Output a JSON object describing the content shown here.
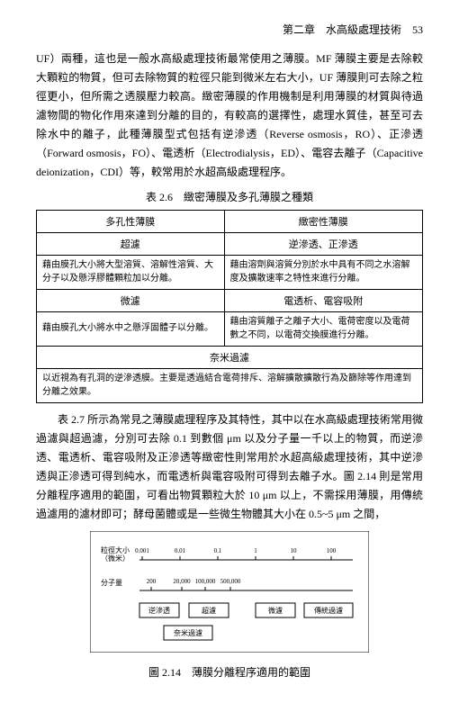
{
  "header": {
    "chapter": "第二章　水高級處理技術　53"
  },
  "para1": "UF）兩種，這也是一般水高級處理技術最常使用之薄膜。MF 薄膜主要是去除較大顆粒的物質，但可去除物質的粒徑只能到微米左右大小，UF 薄膜則可去除之粒徑更小，但所需之透膜壓力較高。緻密薄膜的作用機制是利用薄膜的材質與待過濾物間的物化作用來達到分離的目的，有較高的選擇性，處理水質佳，甚至可去除水中的離子，此種薄膜型式包括有逆滲透（Reverse osmosis，RO）、正滲透（Forward osmosis，FO）、電透析（Electrodialysis，ED）、電容去離子（Capacitive deionization，CDI）等，較常用於水超高級處理程序。",
  "table_caption": "表 2.6　緻密薄膜及多孔薄膜之種類",
  "table": {
    "h1": "多孔性薄膜",
    "h2": "緻密性薄膜",
    "r1c1": "超濾",
    "r1c2": "逆滲透、正滲透",
    "r2c1": "藉由膜孔大小將大型溶質、溶解性溶質、大分子以及懸浮膠體顆粒加以分離。",
    "r2c2": "藉由溶劑與溶質分別於水中具有不同之水溶解度及擴散速率之特性來進行分離。",
    "r3c1": "微濾",
    "r3c2": "電透析、電容吸附",
    "r4c1": "藉由膜孔大小將水中之懸浮固體子以分離。",
    "r4c2": "藉由溶質離子之離子大小、電荷密度以及電荷數之不同，以電荷交換膜進行分離。",
    "r5": "奈米過濾",
    "r6": "以近視為有孔洞的逆滲透膜。主要是透過結合電荷排斥、溶解擴散擴散行為及篩除等作用達到分離之效果。"
  },
  "para2": "表 2.7 所示為常見之薄膜處理程序及其特性，其中以在水高級處理技術常用微過濾與超過濾，分別可去除 0.1 到數個 μm 以及分子量一千以上的物質，而逆滲透、電透析、電容吸附及正滲透等緻密性則常用於水超高級處理技術，其中逆滲透與正滲透可得到純水，而電透析與電容吸附可得到去離子水。圖 2.14 則是常用分離程序適用的範圍，可看出物質顆粒大於 10 μm 以上，不需採用薄膜，用傳統過濾用的濾材即可；酵母菌體或是一些微生物體其大小在 0.5~5 μm 之間，",
  "figure_caption": "圖 2.14　薄膜分離程序適用的範圍",
  "diagram": {
    "row_label1": "粒徑大小\n（微米）",
    "row_label2": "分子量",
    "ticks_top": [
      "0.001",
      "0.01",
      "0.1",
      "1",
      "10",
      "100"
    ],
    "ticks_mid": [
      "200",
      "20,000",
      "100,000",
      "500,000"
    ],
    "box1": "逆滲透",
    "box2": "超濾",
    "box3": "微濾",
    "box4": "傳統過濾",
    "box5": "奈米過濾",
    "colors": {
      "frame": "#000000"
    }
  }
}
